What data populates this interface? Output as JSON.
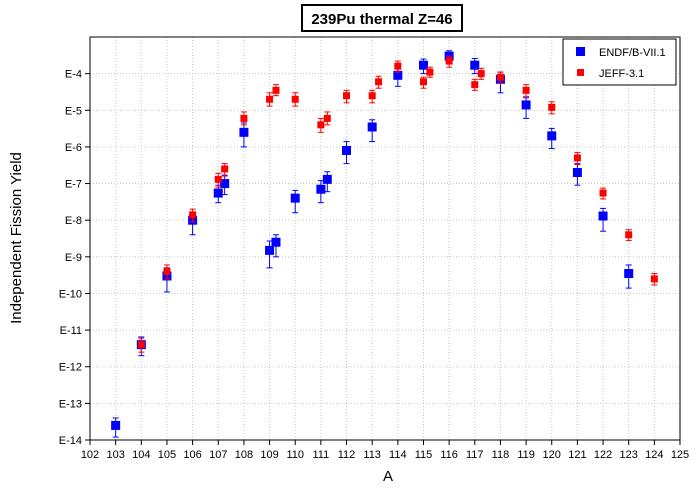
{
  "chart_data": {
    "type": "scatter",
    "title": "239Pu thermal Z=46",
    "xlabel": "A",
    "ylabel": "Independent Fission Yield",
    "xlim": [
      102,
      125
    ],
    "x_ticks": [
      102,
      103,
      104,
      105,
      106,
      107,
      108,
      109,
      110,
      111,
      112,
      113,
      114,
      115,
      116,
      117,
      118,
      119,
      120,
      121,
      122,
      123,
      124,
      125
    ],
    "y_scale": "log",
    "ylim": [
      1e-14,
      0.001
    ],
    "y_ticks": [
      {
        "value": 1e-14,
        "label": "E-14"
      },
      {
        "value": 1e-13,
        "label": "E-13"
      },
      {
        "value": 1e-12,
        "label": "E-12"
      },
      {
        "value": 1e-11,
        "label": "E-11"
      },
      {
        "value": 1e-10,
        "label": "E-10"
      },
      {
        "value": 1e-09,
        "label": "E-9"
      },
      {
        "value": 1e-08,
        "label": "E-8"
      },
      {
        "value": 1e-07,
        "label": "E-7"
      },
      {
        "value": 1e-06,
        "label": "E-6"
      },
      {
        "value": 1e-05,
        "label": "E-5"
      },
      {
        "value": 0.0001,
        "label": "E-4"
      }
    ],
    "grid": true,
    "legend_position": "top-right",
    "series": [
      {
        "name": "ENDF/B-VII.1",
        "color": "#0000ff",
        "marker": "square-large",
        "points": [
          {
            "x": 103,
            "y": 2.5e-14,
            "lo": 1.2e-14,
            "hi": 4e-14
          },
          {
            "x": 104,
            "y": 4e-12,
            "lo": 2e-12,
            "hi": 6.5e-12
          },
          {
            "x": 105,
            "y": 3e-10,
            "lo": 1.1e-10,
            "hi": 5e-10
          },
          {
            "x": 106,
            "y": 1e-08,
            "lo": 4e-09,
            "hi": 1.6e-08
          },
          {
            "x": 107,
            "y": 5.5e-08,
            "lo": 3e-08,
            "hi": 9e-08
          },
          {
            "x": 107.25,
            "y": 1e-07,
            "lo": 5e-08,
            "hi": 1.7e-07
          },
          {
            "x": 108,
            "y": 2.5e-06,
            "lo": 1e-06,
            "hi": 4.5e-06
          },
          {
            "x": 109,
            "y": 1.5e-09,
            "lo": 5e-10,
            "hi": 2.7e-09
          },
          {
            "x": 109.25,
            "y": 2.5e-09,
            "lo": 1e-09,
            "hi": 4e-09
          },
          {
            "x": 110,
            "y": 4e-08,
            "lo": 1.6e-08,
            "hi": 6.5e-08
          },
          {
            "x": 111,
            "y": 7e-08,
            "lo": 3e-08,
            "hi": 1.2e-07
          },
          {
            "x": 111.25,
            "y": 1.3e-07,
            "lo": 6e-08,
            "hi": 2.1e-07
          },
          {
            "x": 112,
            "y": 8e-07,
            "lo": 3.5e-07,
            "hi": 1.4e-06
          },
          {
            "x": 113,
            "y": 3.5e-06,
            "lo": 1.4e-06,
            "hi": 5.5e-06
          },
          {
            "x": 114,
            "y": 9e-05,
            "lo": 4.5e-05,
            "hi": 0.00014
          },
          {
            "x": 115,
            "y": 0.00017,
            "lo": 0.0001,
            "hi": 0.00025
          },
          {
            "x": 116,
            "y": 0.0003,
            "lo": 0.0002,
            "hi": 0.00042
          },
          {
            "x": 117,
            "y": 0.00017,
            "lo": 0.0001,
            "hi": 0.00026
          },
          {
            "x": 118,
            "y": 7e-05,
            "lo": 3e-05,
            "hi": 0.00011
          },
          {
            "x": 119,
            "y": 1.4e-05,
            "lo": 6e-06,
            "hi": 2.2e-05
          },
          {
            "x": 120,
            "y": 2e-06,
            "lo": 9e-07,
            "hi": 3.2e-06
          },
          {
            "x": 121,
            "y": 2e-07,
            "lo": 9e-08,
            "hi": 3.5e-07
          },
          {
            "x": 122,
            "y": 1.3e-08,
            "lo": 5e-09,
            "hi": 2.1e-08
          },
          {
            "x": 123,
            "y": 3.5e-10,
            "lo": 1.4e-10,
            "hi": 6e-10
          }
        ]
      },
      {
        "name": "JEFF-3.1",
        "color": "#ff0000",
        "marker": "square-small",
        "points": [
          {
            "x": 104,
            "y": 4e-12,
            "lo": 2.5e-12,
            "hi": 6e-12
          },
          {
            "x": 105,
            "y": 4e-10,
            "lo": 2.5e-10,
            "hi": 6e-10
          },
          {
            "x": 106,
            "y": 1.4e-08,
            "lo": 9e-09,
            "hi": 2e-08
          },
          {
            "x": 107,
            "y": 1.3e-07,
            "lo": 8e-08,
            "hi": 1.9e-07
          },
          {
            "x": 107.25,
            "y": 2.5e-07,
            "lo": 1.6e-07,
            "hi": 3.5e-07
          },
          {
            "x": 108,
            "y": 6e-06,
            "lo": 4e-06,
            "hi": 9e-06
          },
          {
            "x": 109,
            "y": 2e-05,
            "lo": 1.3e-05,
            "hi": 3e-05
          },
          {
            "x": 109.25,
            "y": 3.5e-05,
            "lo": 2.5e-05,
            "hi": 5e-05
          },
          {
            "x": 110,
            "y": 2e-05,
            "lo": 1.3e-05,
            "hi": 3e-05
          },
          {
            "x": 111,
            "y": 4e-06,
            "lo": 2.5e-06,
            "hi": 6e-06
          },
          {
            "x": 111.25,
            "y": 6e-06,
            "lo": 4e-06,
            "hi": 9e-06
          },
          {
            "x": 112,
            "y": 2.5e-05,
            "lo": 1.6e-05,
            "hi": 3.5e-05
          },
          {
            "x": 113,
            "y": 2.5e-05,
            "lo": 1.6e-05,
            "hi": 3.5e-05
          },
          {
            "x": 113.25,
            "y": 6e-05,
            "lo": 4e-05,
            "hi": 8.5e-05
          },
          {
            "x": 114,
            "y": 0.00016,
            "lo": 0.00011,
            "hi": 0.00022
          },
          {
            "x": 115,
            "y": 6e-05,
            "lo": 4e-05,
            "hi": 8e-05
          },
          {
            "x": 115.25,
            "y": 0.00011,
            "lo": 8e-05,
            "hi": 0.00015
          },
          {
            "x": 116,
            "y": 0.00022,
            "lo": 0.00015,
            "hi": 0.0003
          },
          {
            "x": 117,
            "y": 5e-05,
            "lo": 3.5e-05,
            "hi": 7e-05
          },
          {
            "x": 117.25,
            "y": 0.0001,
            "lo": 7e-05,
            "hi": 0.00014
          },
          {
            "x": 118,
            "y": 8e-05,
            "lo": 5.5e-05,
            "hi": 0.00011
          },
          {
            "x": 119,
            "y": 3.5e-05,
            "lo": 2.4e-05,
            "hi": 5e-05
          },
          {
            "x": 120,
            "y": 1.2e-05,
            "lo": 8e-06,
            "hi": 1.7e-05
          },
          {
            "x": 121,
            "y": 5e-07,
            "lo": 3.3e-07,
            "hi": 7e-07
          },
          {
            "x": 122,
            "y": 5.5e-08,
            "lo": 3.8e-08,
            "hi": 7.5e-08
          },
          {
            "x": 123,
            "y": 4e-09,
            "lo": 2.8e-09,
            "hi": 5.5e-09
          },
          {
            "x": 124,
            "y": 2.5e-10,
            "lo": 1.7e-10,
            "hi": 3.5e-10
          }
        ]
      }
    ]
  }
}
